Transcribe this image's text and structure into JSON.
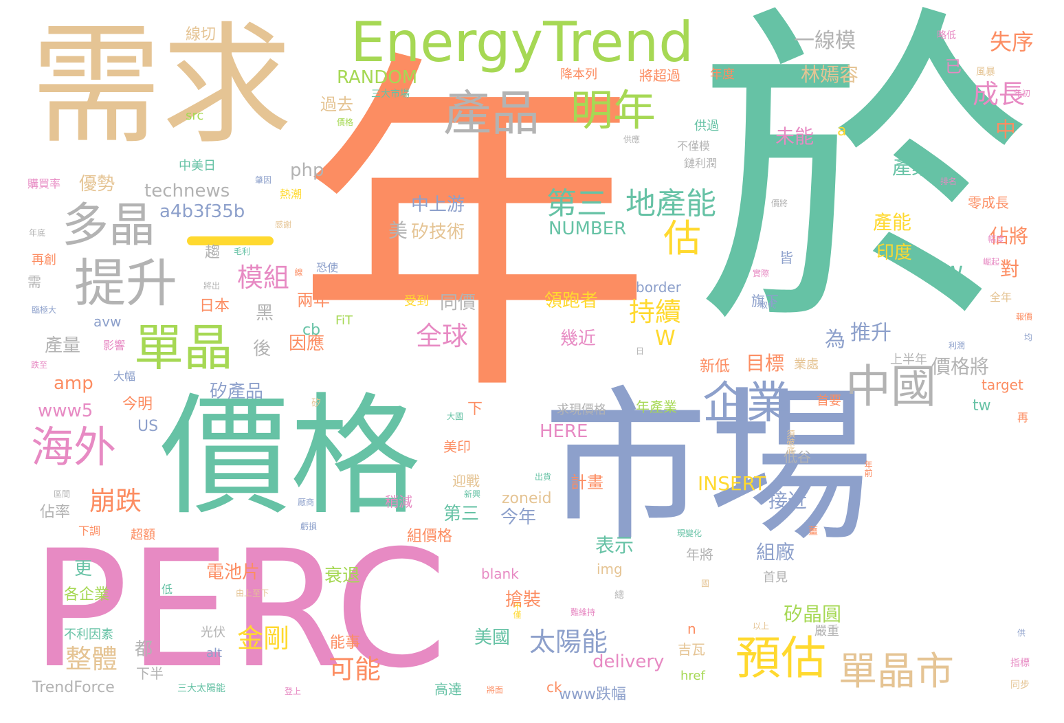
{
  "words": [
    {
      "t": "年",
      "c": "#fc8d62"
    },
    {
      "t": "於",
      "c": "#66c2a5"
    },
    {
      "t": "需求",
      "c": "#e5c494"
    },
    {
      "t": "PERC",
      "c": "#e78ac3"
    },
    {
      "t": "價格",
      "c": "#66c2a5"
    },
    {
      "t": "市場",
      "c": "#8da0cb"
    },
    {
      "t": "EnergyTrend",
      "c": "#a6d854"
    },
    {
      "t": "產品",
      "c": "#b3b3b3"
    },
    {
      "t": "明年",
      "c": "#a6d854"
    },
    {
      "t": "多晶",
      "c": "#b3b3b3"
    },
    {
      "t": "提升",
      "c": "#b3b3b3"
    },
    {
      "t": "單晶",
      "c": "#a6d854"
    },
    {
      "t": "海外",
      "c": "#e78ac3"
    },
    {
      "t": "企業",
      "c": "#8da0cb"
    },
    {
      "t": "中國",
      "c": "#b3b3b3"
    },
    {
      "t": "預估",
      "c": "#ffd92f"
    },
    {
      "t": "單晶市",
      "c": "#e5c494"
    },
    {
      "t": "估",
      "c": "#ffd92f"
    },
    {
      "t": "第三",
      "c": "#66c2a5"
    },
    {
      "t": "地產能",
      "c": "#66c2a5"
    },
    {
      "t": "模組",
      "c": "#e78ac3"
    },
    {
      "t": "持續",
      "c": "#ffd92f"
    },
    {
      "t": "崩跌",
      "c": "#fc8d62"
    },
    {
      "t": "全球",
      "c": "#e78ac3"
    },
    {
      "t": "太陽能",
      "c": "#8da0cb"
    },
    {
      "t": "金剛",
      "c": "#ffd92f"
    },
    {
      "t": "整體",
      "c": "#e5c494"
    },
    {
      "t": "可能",
      "c": "#fc8d62"
    },
    {
      "t": "成長",
      "c": "#e78ac3"
    },
    {
      "t": "失序",
      "c": "#fc8d62"
    },
    {
      "t": "一線模",
      "c": "#b3b3b3"
    },
    {
      "t": "林嫣容",
      "c": "#e5c494"
    },
    {
      "t": "RANDOM",
      "c": "#a6d854"
    },
    {
      "t": "technews",
      "c": "#b3b3b3"
    },
    {
      "t": "a4b3f35b",
      "c": "#8da0cb"
    },
    {
      "t": "NUMBER",
      "c": "#66c2a5"
    },
    {
      "t": "amp",
      "c": "#fc8d62"
    },
    {
      "t": "www5",
      "c": "#e78ac3"
    },
    {
      "t": "產量",
      "c": "#b3b3b3"
    },
    {
      "t": "優勢",
      "c": "#e5c494"
    },
    {
      "t": "php",
      "c": "#b3b3b3"
    },
    {
      "t": "中上游",
      "c": "#8da0cb"
    },
    {
      "t": "矽技術",
      "c": "#e5c494"
    },
    {
      "t": "美",
      "c": "#b3b3b3"
    },
    {
      "t": "GW",
      "c": "#66c2a5"
    },
    {
      "t": "印度",
      "c": "#ffd92f"
    },
    {
      "t": "產能",
      "c": "#ffd92f"
    },
    {
      "t": "產業",
      "c": "#66c2a5"
    },
    {
      "t": "佔將",
      "c": "#fc8d62"
    },
    {
      "t": "對",
      "c": "#fc8d62"
    },
    {
      "t": "中",
      "c": "#fc8d62"
    },
    {
      "t": "已",
      "c": "#e78ac3"
    },
    {
      "t": "未能",
      "c": "#e78ac3"
    },
    {
      "t": "過去",
      "c": "#e5c494"
    },
    {
      "t": "線切",
      "c": "#e5c494"
    },
    {
      "t": "src",
      "c": "#a6d854"
    },
    {
      "t": "中美日",
      "c": "#66c2a5"
    },
    {
      "t": "推升",
      "c": "#8da0cb"
    },
    {
      "t": "為",
      "c": "#8da0cb"
    },
    {
      "t": "目標",
      "c": "#fc8d62"
    },
    {
      "t": "新低",
      "c": "#fc8d62"
    },
    {
      "t": "價格將",
      "c": "#b3b3b3"
    },
    {
      "t": "上半年",
      "c": "#b3b3b3"
    },
    {
      "t": "領跑者",
      "c": "#ffd92f"
    },
    {
      "t": "幾近",
      "c": "#e78ac3"
    },
    {
      "t": "同價",
      "c": "#b3b3b3"
    },
    {
      "t": "兩年",
      "c": "#fc8d62"
    },
    {
      "t": "因應",
      "c": "#fc8d62"
    },
    {
      "t": "矽產品",
      "c": "#8da0cb"
    },
    {
      "t": "今明",
      "c": "#fc8d62"
    },
    {
      "t": "US",
      "c": "#8da0cb"
    },
    {
      "t": "HERE",
      "c": "#e78ac3"
    },
    {
      "t": "INSERT",
      "c": "#ffd92f"
    },
    {
      "t": "zoneid",
      "c": "#e5c494"
    },
    {
      "t": "計畫",
      "c": "#fc8d62"
    },
    {
      "t": "第三",
      "c": "#66c2a5"
    },
    {
      "t": "今年",
      "c": "#8da0cb"
    },
    {
      "t": "表示",
      "c": "#66c2a5"
    },
    {
      "t": "電池片",
      "c": "#fc8d62"
    },
    {
      "t": "衰退",
      "c": "#a6d854"
    },
    {
      "t": "搶裝",
      "c": "#fc8d62"
    },
    {
      "t": "美國",
      "c": "#66c2a5"
    },
    {
      "t": "delivery",
      "c": "#e78ac3"
    },
    {
      "t": "www跌幅",
      "c": "#8da0cb"
    },
    {
      "t": "組廠",
      "c": "#8da0cb"
    },
    {
      "t": "接近",
      "c": "#8da0cb"
    },
    {
      "t": "矽晶圓",
      "c": "#a6d854"
    },
    {
      "t": "吉瓦",
      "c": "#e5c494"
    },
    {
      "t": "TrendForce",
      "c": "#b3b3b3"
    },
    {
      "t": "佔率",
      "c": "#b3b3b3"
    },
    {
      "t": "都",
      "c": "#b3b3b3"
    },
    {
      "t": "下半",
      "c": "#b3b3b3"
    },
    {
      "t": "黑",
      "c": "#b3b3b3"
    },
    {
      "t": "後",
      "c": "#b3b3b3"
    },
    {
      "t": "cb",
      "c": "#66c2a5"
    },
    {
      "t": "W",
      "c": "#ffd92f"
    },
    {
      "t": "tw",
      "c": "#66c2a5"
    },
    {
      "t": "a",
      "c": "#ffd92f"
    },
    {
      "t": "日本",
      "c": "#fc8d62"
    },
    {
      "t": "更",
      "c": "#66c2a5"
    },
    {
      "t": "各企業",
      "c": "#a6d854"
    },
    {
      "t": "不利因素",
      "c": "#66c2a5"
    },
    {
      "t": "三大太陽能",
      "c": "#66c2a5"
    },
    {
      "t": "alt",
      "c": "#8da0cb"
    },
    {
      "t": "光伏",
      "c": "#b3b3b3"
    },
    {
      "t": "能事",
      "c": "#fc8d62"
    },
    {
      "t": "高達",
      "c": "#66c2a5"
    },
    {
      "t": "ck",
      "c": "#fc8d62"
    },
    {
      "t": "href",
      "c": "#a6d854"
    },
    {
      "t": "嚴重",
      "c": "#b3b3b3"
    },
    {
      "t": "n",
      "c": "#fc8d62"
    },
    {
      "t": "blank",
      "c": "#e78ac3"
    },
    {
      "t": "img",
      "c": "#e5c494"
    },
    {
      "t": "年將",
      "c": "#b3b3b3"
    },
    {
      "t": "首見",
      "c": "#b3b3b3"
    },
    {
      "t": "低谷",
      "c": "#b3b3b3"
    },
    {
      "t": "求現價格",
      "c": "#b3b3b3"
    },
    {
      "t": "年產業",
      "c": "#a6d854"
    },
    {
      "t": "首要",
      "c": "#fc8d62"
    },
    {
      "t": "業處",
      "c": "#e5c494"
    },
    {
      "t": "target",
      "c": "#fc8d62"
    },
    {
      "t": "組價格",
      "c": "#fc8d62"
    },
    {
      "t": "迎戰",
      "c": "#e5c494"
    },
    {
      "t": "美印",
      "c": "#fc8d62"
    },
    {
      "t": "稍減",
      "c": "#e78ac3"
    },
    {
      "t": "超額",
      "c": "#fc8d62"
    },
    {
      "t": "下調",
      "c": "#fc8d62"
    },
    {
      "t": "border",
      "c": "#8da0cb"
    },
    {
      "t": "受到",
      "c": "#ffd92f"
    },
    {
      "t": "旗下",
      "c": "#8da0cb"
    },
    {
      "t": "皆",
      "c": "#8da0cb"
    },
    {
      "t": "降本列",
      "c": "#fc8d62"
    },
    {
      "t": "將超過",
      "c": "#fc8d62"
    },
    {
      "t": "年度",
      "c": "#fc8d62"
    },
    {
      "t": "供過",
      "c": "#66c2a5"
    },
    {
      "t": "不僅模",
      "c": "#b3b3b3"
    },
    {
      "t": "鏈利潤",
      "c": "#b3b3b3"
    },
    {
      "t": "三大市場",
      "c": "#66c2a5"
    },
    {
      "t": "購買率",
      "c": "#e78ac3"
    },
    {
      "t": "熱潮",
      "c": "#ffd92f"
    },
    {
      "t": "恐使",
      "c": "#8da0cb"
    },
    {
      "t": "零成長",
      "c": "#fc8d62"
    },
    {
      "t": "全年",
      "c": "#e5c494"
    },
    {
      "t": "avw",
      "c": "#8da0cb"
    },
    {
      "t": "FiT",
      "c": "#a6d854"
    },
    {
      "t": "大幅",
      "c": "#8da0cb"
    },
    {
      "t": "影響",
      "c": "#e78ac3"
    },
    {
      "t": "再創",
      "c": "#fc8d62"
    },
    {
      "t": "需",
      "c": "#b3b3b3"
    },
    {
      "t": "趨",
      "c": "#b3b3b3"
    },
    {
      "t": "下",
      "c": "#fc8d62"
    },
    {
      "t": "再",
      "c": "#fc8d62"
    },
    {
      "t": "低",
      "c": "#66c2a5"
    },
    {
      "t": "略低",
      "c": "#e78ac3"
    },
    {
      "t": "風暴",
      "c": "#e5c494"
    },
    {
      "t": "年初",
      "c": "#e78ac3"
    },
    {
      "t": "排名",
      "c": "#e78ac3"
    },
    {
      "t": "價將",
      "c": "#b3b3b3"
    },
    {
      "t": "年底",
      "c": "#b3b3b3"
    },
    {
      "t": "價格",
      "c": "#a6d854"
    },
    {
      "t": "肇因",
      "c": "#8da0cb"
    },
    {
      "t": "毛利",
      "c": "#66c2a5"
    },
    {
      "t": "感謝",
      "c": "#e5c494"
    },
    {
      "t": "將出",
      "c": "#b3b3b3"
    },
    {
      "t": "線",
      "c": "#fc8d62"
    },
    {
      "t": "臨極大",
      "c": "#8da0cb"
    },
    {
      "t": "跌至",
      "c": "#e78ac3"
    },
    {
      "t": "矽",
      "c": "#e5c494"
    },
    {
      "t": "大國",
      "c": "#66c2a5"
    },
    {
      "t": "新興",
      "c": "#66c2a5"
    },
    {
      "t": "出貨",
      "c": "#66c2a5"
    },
    {
      "t": "厰商",
      "c": "#8da0cb"
    },
    {
      "t": "虧損",
      "c": "#8da0cb"
    },
    {
      "t": "現變化",
      "c": "#66c2a5"
    },
    {
      "t": "薑",
      "c": "#fc8d62"
    },
    {
      "t": "總",
      "c": "#b3b3b3"
    },
    {
      "t": "不僅",
      "c": "#ffd92f"
    },
    {
      "t": "由上至下",
      "c": "#e5c494"
    },
    {
      "t": "國",
      "c": "#e5c494"
    },
    {
      "t": "難維持",
      "c": "#e78ac3"
    },
    {
      "t": "以上",
      "c": "#e5c494"
    },
    {
      "t": "登上",
      "c": "#e78ac3"
    },
    {
      "t": "將面",
      "c": "#fc8d62"
    },
    {
      "t": "指標",
      "c": "#e78ac3"
    },
    {
      "t": "同步",
      "c": "#e5c494"
    },
    {
      "t": "供",
      "c": "#8da0cb"
    },
    {
      "t": "年前",
      "c": "#fc8d62"
    },
    {
      "t": "須破底",
      "c": "#e5c494"
    },
    {
      "t": "區間",
      "c": "#b3b3b3"
    },
    {
      "t": "供應",
      "c": "#b3b3b3"
    },
    {
      "t": "幅度",
      "c": "#e78ac3"
    },
    {
      "t": "崛起",
      "c": "#e78ac3"
    },
    {
      "t": "實際",
      "c": "#e78ac3"
    },
    {
      "t": "取代",
      "c": "#8da0cb"
    },
    {
      "t": "報價",
      "c": "#fc8d62"
    },
    {
      "t": "均",
      "c": "#8da0cb"
    },
    {
      "t": "利潤",
      "c": "#8da0cb"
    },
    {
      "t": "日",
      "c": "#b3b3b3"
    }
  ]
}
